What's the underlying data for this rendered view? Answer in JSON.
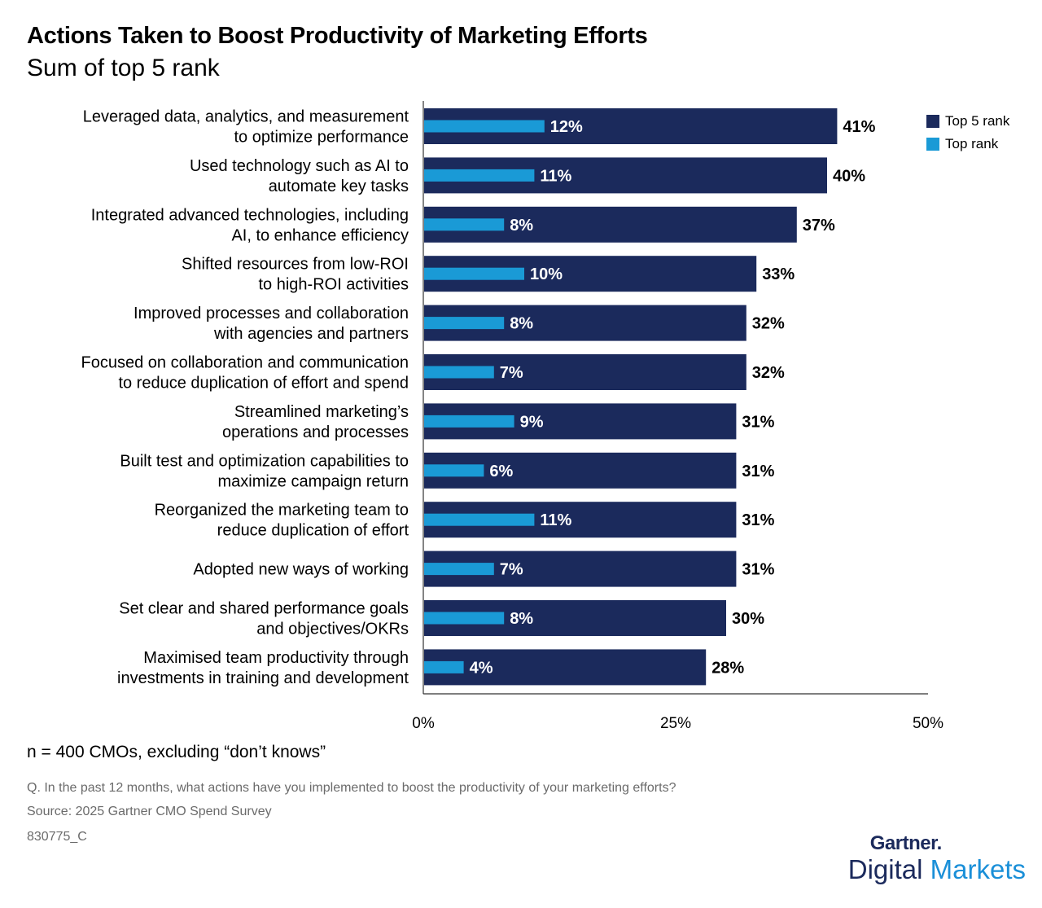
{
  "title": "Actions Taken to Boost Productivity of Marketing Efforts",
  "subtitle": "Sum of top 5 rank",
  "colors": {
    "top5": "#1b2a5c",
    "top": "#1a9ad6"
  },
  "legend": {
    "top5_label": "Top 5 rank",
    "top_label": "Top rank"
  },
  "note": "n = 400 CMOs, excluding “don’t knows”",
  "question": "Q. In the past 12 months, what actions have you implemented to boost the productivity of your marketing efforts?",
  "source": "Source: 2025 Gartner CMO Spend Survey",
  "code": "830775_C",
  "brand": {
    "top": "Gartner.",
    "bottom_a": "Digital",
    "bottom_b": "Markets"
  },
  "chart_data": {
    "type": "bar",
    "orientation": "horizontal",
    "categories": [
      [
        "Leveraged data, analytics, and measurement",
        "to optimize performance"
      ],
      [
        "Used technology such as AI to",
        "automate key tasks"
      ],
      [
        "Integrated advanced technologies, including",
        "AI, to enhance efficiency"
      ],
      [
        "Shifted resources from low-ROI",
        "to high-ROI activities"
      ],
      [
        "Improved processes and collaboration",
        "with agencies and partners"
      ],
      [
        "Focused on collaboration and communication",
        "to reduce duplication of effort and spend"
      ],
      [
        "Streamlined marketing’s",
        "operations and processes"
      ],
      [
        "Built test and optimization capabilities to",
        "maximize campaign return"
      ],
      [
        "Reorganized the marketing team to",
        "reduce duplication of effort"
      ],
      [
        "Adopted new ways of working"
      ],
      [
        "Set clear and shared performance goals",
        "and objectives/OKRs"
      ],
      [
        "Maximised team productivity through",
        "investments in training and development"
      ]
    ],
    "series": [
      {
        "name": "Top 5 rank",
        "values": [
          41,
          40,
          37,
          33,
          32,
          32,
          31,
          31,
          31,
          31,
          30,
          28
        ],
        "labels": [
          "41%",
          "40%",
          "37%",
          "33%",
          "32%",
          "32%",
          "31%",
          "31%",
          "31%",
          "31%",
          "30%",
          "28%"
        ]
      },
      {
        "name": "Top rank",
        "values": [
          12,
          11,
          8,
          10,
          8,
          7,
          9,
          6,
          11,
          7,
          8,
          4
        ],
        "labels": [
          "12%",
          "11%",
          "8%",
          "10%",
          "8%",
          "7%",
          "9%",
          "6%",
          "11%",
          "7%",
          "8%",
          "4%"
        ]
      }
    ],
    "xlim": [
      0,
      50
    ],
    "xticks": [
      "0%",
      "25%",
      "50%"
    ],
    "legend_position": "top-right"
  }
}
